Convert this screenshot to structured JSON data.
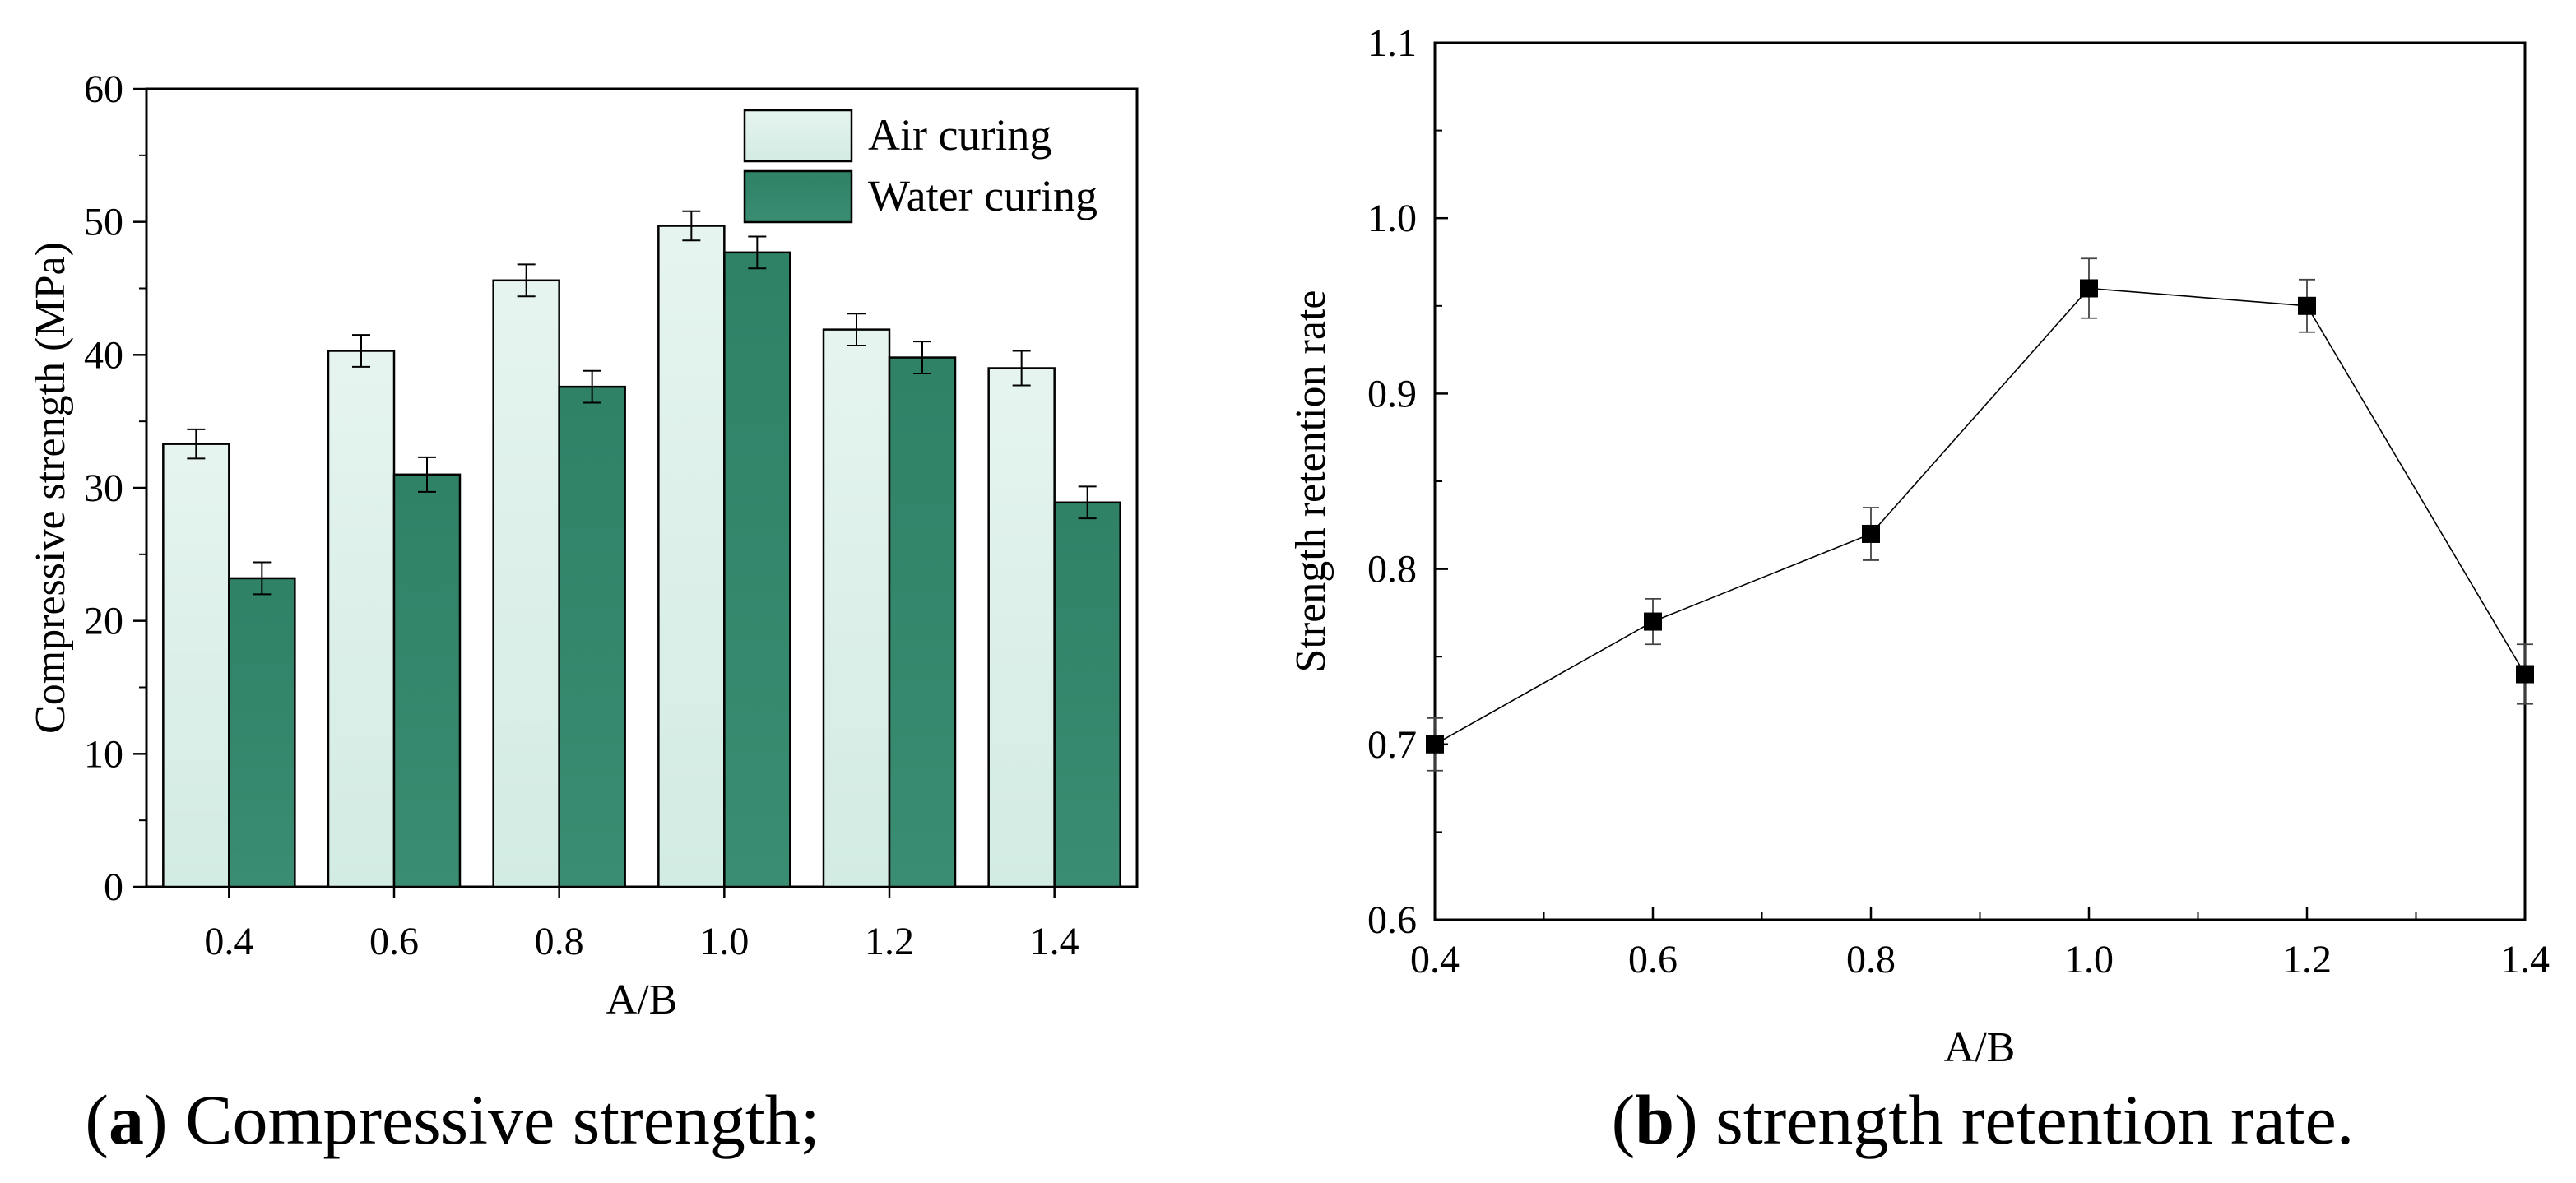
{
  "chart_data": [
    {
      "id": "a",
      "type": "bar",
      "categories": [
        "0.4",
        "0.6",
        "0.8",
        "1.0",
        "1.2",
        "1.4"
      ],
      "series": [
        {
          "name": "Air curing",
          "values": [
            33.3,
            40.3,
            45.6,
            49.7,
            41.9,
            39.0
          ],
          "errors": [
            1.1,
            1.2,
            1.2,
            1.1,
            1.2,
            1.3
          ],
          "color": "#d6eee6"
        },
        {
          "name": "Water curing",
          "values": [
            23.2,
            31.0,
            37.6,
            47.7,
            39.8,
            28.9
          ],
          "errors": [
            1.2,
            1.3,
            1.2,
            1.2,
            1.2,
            1.2
          ],
          "color": "#388a6f"
        }
      ],
      "xlabel": "A/B",
      "ylabel": "Compressive strength (MPa)",
      "ylim": [
        0,
        60
      ],
      "yticks": [
        "0",
        "10",
        "20",
        "30",
        "40",
        "50",
        "60"
      ],
      "legend_position": "top-right",
      "caption_letter": "a",
      "caption_text": " Compressive strength;"
    },
    {
      "id": "b",
      "type": "line",
      "x": [
        0.4,
        0.6,
        0.8,
        1.0,
        1.2,
        1.4
      ],
      "y": [
        0.7,
        0.77,
        0.82,
        0.96,
        0.95,
        0.74
      ],
      "errors": [
        0.015,
        0.013,
        0.015,
        0.017,
        0.015,
        0.017
      ],
      "xlabel": "A/B",
      "ylabel": "Strength retention rate",
      "xlim": [
        0.4,
        1.4
      ],
      "ylim": [
        0.6,
        1.1
      ],
      "xticks": [
        "0.4",
        "0.6",
        "0.8",
        "1.0",
        "1.2",
        "1.4"
      ],
      "yticks": [
        "0.6",
        "0.7",
        "0.8",
        "0.9",
        "1.0",
        "1.1"
      ],
      "marker": "square",
      "caption_letter": "b",
      "caption_text": " strength retention rate."
    }
  ]
}
